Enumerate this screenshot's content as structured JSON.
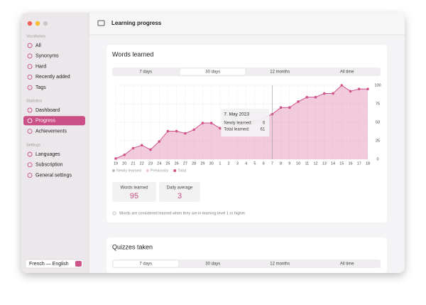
{
  "window": {
    "title": "Learning progress"
  },
  "sidebar": {
    "sections": [
      {
        "title": "Vocabulary",
        "items": [
          "All",
          "Synonyms",
          "Hard",
          "Recently added",
          "Tags"
        ]
      },
      {
        "title": "Statistics",
        "items": [
          "Dashboard",
          "Progress",
          "Achievements"
        ]
      },
      {
        "title": "Settings",
        "items": [
          "Languages",
          "Subscription",
          "General settings"
        ]
      }
    ],
    "selected": "Progress",
    "language": "French — English"
  },
  "words_card": {
    "title": "Words learned",
    "tabs": [
      "7 days",
      "30 days",
      "12 months",
      "All time"
    ],
    "selected_tab": "30 days",
    "chart": {
      "type": "area",
      "categories": [
        "19",
        "20",
        "21",
        "22",
        "23",
        "24",
        "25",
        "26",
        "27",
        "28",
        "29",
        "30",
        "1",
        "2",
        "3",
        "4",
        "5",
        "6",
        "7",
        "8",
        "9",
        "10",
        "11",
        "12",
        "13",
        "14",
        "15",
        "16",
        "17",
        "18"
      ],
      "series": [
        {
          "name": "Total",
          "color": "#d0528a",
          "values": [
            1,
            6,
            15,
            19,
            13,
            24,
            38,
            38,
            35,
            40,
            49,
            49,
            42,
            43,
            45,
            50,
            52,
            55,
            61,
            70,
            70,
            78,
            84,
            84,
            89,
            89,
            100,
            92,
            95,
            95
          ]
        }
      ],
      "legend": [
        {
          "name": "Newly learned",
          "color": "#c9b6bf"
        },
        {
          "name": "Previously",
          "color": "#efc6d8"
        },
        {
          "name": "Total",
          "color": "#d0528a"
        }
      ],
      "ylim": [
        0,
        100
      ],
      "yticks": [
        0,
        25,
        50,
        75,
        100
      ],
      "grid": true,
      "tooltip": {
        "date": "7. May 2023",
        "rows": [
          {
            "label": "Newly learned:",
            "value": 6
          },
          {
            "label": "Total learned:",
            "value": 61
          }
        ]
      }
    },
    "stats": [
      {
        "label": "Words learned",
        "value": 95
      },
      {
        "label": "Daily average",
        "value": 3
      }
    ],
    "note": "Words are considered learned when they are in learning level 1 or higher."
  },
  "quizzes_card": {
    "title": "Quizzes taken",
    "tabs": [
      "7 days",
      "30 days",
      "12 months",
      "All time"
    ],
    "selected_tab": "7 days"
  }
}
